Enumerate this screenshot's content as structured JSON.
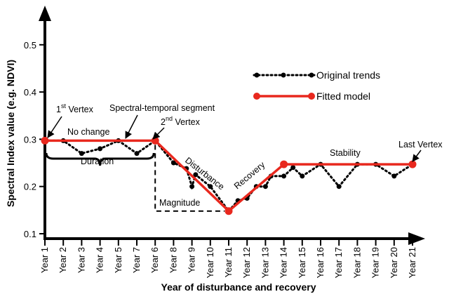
{
  "chart_data": {
    "type": "line",
    "xlabel": "Year of disturbance and recovery",
    "ylabel": "Spectral Index value (e.g. NDVI)",
    "ylim": [
      0.1,
      0.55
    ],
    "y_ticks": [
      "0.1",
      "0.2",
      "0.3",
      "0.4",
      "0.5"
    ],
    "categories": [
      "Year 1",
      "Year 2",
      "Year 3",
      "Year 4",
      "Year 5",
      "Year 7",
      "Year 6",
      "Year 8",
      "Year 9",
      "Year 10",
      "Year 11",
      "Year 12",
      "Year 13",
      "Year 14",
      "Year 15",
      "Year 16",
      "Year 17",
      "Year 18",
      "Year 19",
      "Year 20",
      "Year 21"
    ],
    "series": [
      {
        "name": "Original trends",
        "color": "#000000",
        "style": "dotted",
        "points": [
          [
            1,
            0.297
          ],
          [
            2,
            0.297
          ],
          [
            3,
            0.27
          ],
          [
            4,
            0.28
          ],
          [
            5,
            0.297
          ],
          [
            6,
            0.27
          ],
          [
            7,
            0.297
          ],
          [
            8,
            0.25
          ],
          [
            8.7,
            0.238
          ],
          [
            9,
            0.2
          ],
          [
            9.2,
            0.225
          ],
          [
            10,
            0.2
          ],
          [
            11,
            0.148
          ],
          [
            11.5,
            0.17
          ],
          [
            12,
            0.175
          ],
          [
            12.5,
            0.2
          ],
          [
            13,
            0.2
          ],
          [
            13.3,
            0.222
          ],
          [
            14,
            0.222
          ],
          [
            14.5,
            0.24
          ],
          [
            15,
            0.222
          ],
          [
            16,
            0.247
          ],
          [
            17,
            0.2
          ],
          [
            18,
            0.247
          ],
          [
            19,
            0.247
          ],
          [
            20,
            0.222
          ],
          [
            21,
            0.247
          ]
        ]
      },
      {
        "name": "Fitted model",
        "color": "#e8281e",
        "style": "solid",
        "points": [
          [
            1,
            0.297
          ],
          [
            7,
            0.297
          ],
          [
            11,
            0.148
          ],
          [
            14,
            0.247
          ],
          [
            21,
            0.247
          ]
        ]
      }
    ],
    "annotations": {
      "first_vertex": "1",
      "first_vertex_sup": "st",
      "first_vertex_suffix": " Vertex",
      "no_change": "No change",
      "segment": "Spectral-temporal segment",
      "second_vertex": "2",
      "second_vertex_sup": "nd",
      "second_vertex_suffix": " Vertex",
      "duration": "Duration",
      "magnitude": "Magnitude",
      "disturbance": "Disturbance",
      "recovery": "Recovery",
      "stability": "Stability",
      "last_vertex": "Last Vertex"
    },
    "legend": {
      "placement": "top-right",
      "original": "Original trends",
      "fitted": "Fitted model"
    },
    "grid": false
  }
}
